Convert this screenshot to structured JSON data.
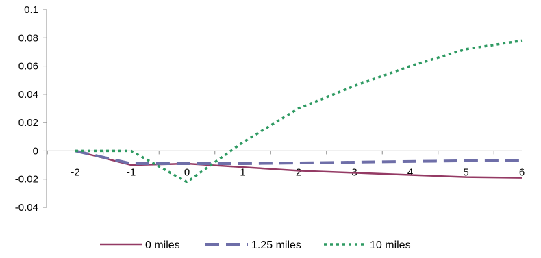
{
  "chart_data": {
    "type": "line",
    "title": "",
    "xlabel": "",
    "ylabel": "",
    "x": [
      -2,
      -1,
      0,
      1,
      2,
      3,
      4,
      5,
      6
    ],
    "xlim": [
      -2,
      6
    ],
    "ylim": [
      -0.04,
      0.1
    ],
    "x_ticks": [
      "-2",
      "-1",
      "0",
      "1",
      "2",
      "3",
      "4",
      "5",
      "6"
    ],
    "y_ticks": [
      0.1,
      0.08,
      0.06,
      0.04,
      0.02,
      0,
      -0.02,
      -0.04
    ],
    "y_tick_labels": [
      "0.1",
      "0.08",
      "0.06",
      "0.04",
      "0.02",
      "0",
      "-0.02",
      "-0.04"
    ],
    "grid": false,
    "legend_position": "bottom",
    "series": [
      {
        "name": "0 miles",
        "color": "#943a64",
        "dash": "solid",
        "values": [
          0,
          -0.01,
          -0.009,
          -0.0115,
          -0.014,
          -0.0155,
          -0.017,
          -0.0185,
          -0.019
        ]
      },
      {
        "name": "1.25 miles",
        "color": "#6e6ea8",
        "dash": "long-dash",
        "values": [
          0,
          -0.009,
          -0.009,
          -0.009,
          -0.0085,
          -0.008,
          -0.0075,
          -0.007,
          -0.007
        ]
      },
      {
        "name": "10 miles",
        "color": "#2e9a62",
        "dash": "dotted",
        "values": [
          0,
          0,
          -0.022,
          0.006,
          0.03,
          0.046,
          0.06,
          0.072,
          0.078
        ]
      }
    ]
  }
}
